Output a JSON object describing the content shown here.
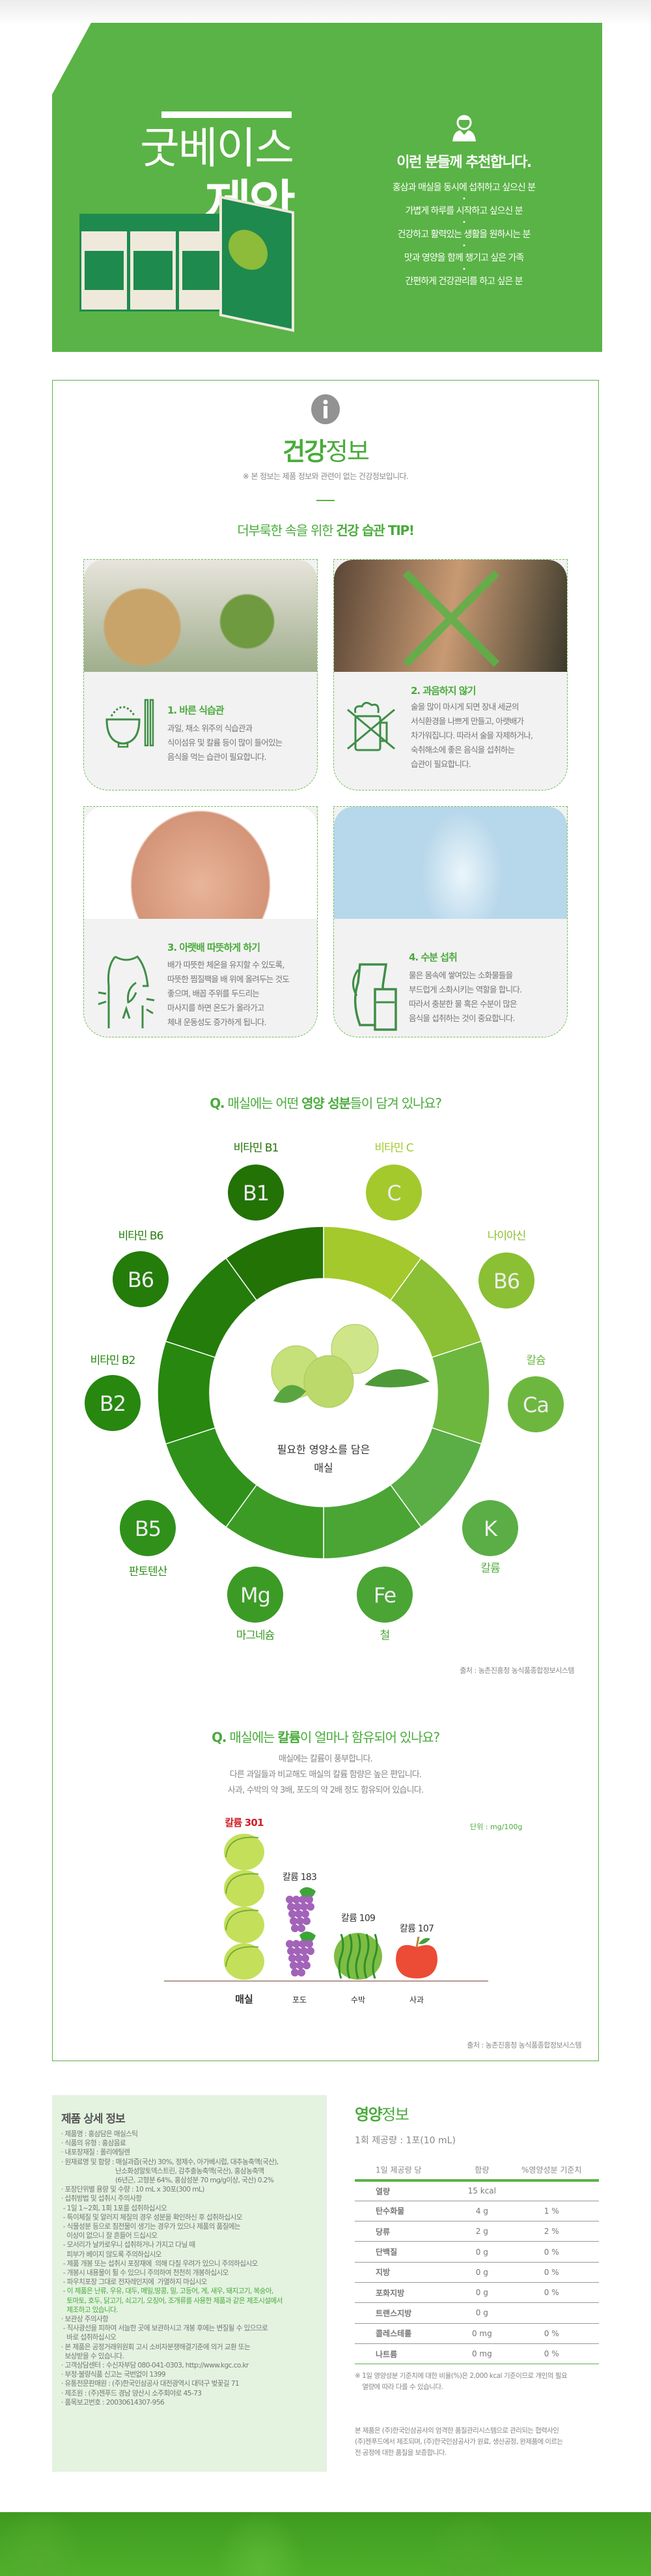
{
  "hero": {
    "title_light": "굿베이스",
    "title_bold": "제안",
    "recommend_heading": "이런 분들께 추천합니다.",
    "recommend_icon": "person-icon",
    "bullets": [
      "홍삼과 매실을 동시에 섭취하고 싶으신 분",
      "가볍게 하루를 시작하고 싶으신 분",
      "건강하고 활력있는 생활을 원하시는 분",
      "맛과 영양을 함께 챙기고 싶은 가족",
      "간편하게 건강관리를 하고 싶은 분"
    ],
    "bg_color": "#5ab346"
  },
  "health": {
    "icon": "info-icon",
    "title_bold": "건강",
    "title_light": "정보",
    "notice": "※ 본 정보는 제품 정보와 관련이 없는 건강정보입니다.",
    "tip_light": "더부룩한 속을 위한 ",
    "tip_bold": "건강 습관 TIP!",
    "cards": [
      {
        "title": "1. 바른 식습관",
        "icon": "rice-bowl-chopsticks-icon",
        "lines": [
          "과일, 채소 위주의 식습관과",
          "식이섬유 및 칼륨 등이 많이 들어있는",
          "음식을 먹는 습관이 필요합니다."
        ]
      },
      {
        "title": "2. 과음하지 않기",
        "icon": "no-beer-icon",
        "lines": [
          "술을 많이 마시게 되면 장내 세균의",
          "서식환경을 나쁘게 만들고, 아랫배가",
          "차가워집니다. 따라서 술을 자제하거나,",
          "숙취해소에 좋은 음식을 섭취하는",
          "습관이 필요합니다."
        ]
      },
      {
        "title": "3. 아랫배 따뜻하게 하기",
        "icon": "warm-belly-icon",
        "lines": [
          "배가 따뜻한 체온을 유지할 수 있도록,",
          "따뜻한 찜질팩을 배 위에 올려두는 것도",
          "좋으며, 배꼽 주위를 두드리는",
          "마사지를 하면 온도가  올라가고",
          "체내 운동성도 증가하게 됩니다."
        ]
      },
      {
        "title": "4. 수분 섭취",
        "icon": "water-pitcher-icon",
        "lines": [
          "물은 몸속에 쌓여있는 소화물들을",
          "부드럽게 소화시키는 역할을 합니다.",
          "따라서 충분한 물 혹은 수분이 많은",
          "음식을 섭취하는 것이 중요합니다."
        ]
      }
    ]
  },
  "nutrients": {
    "question_prefix": "Q.",
    "question_a": " 매실에는 어떤 ",
    "question_bold": "영양 성분",
    "question_b": "들이 담겨 있나요?",
    "center_text": [
      "필요한 영양소를 담은",
      "매실"
    ],
    "items": [
      {
        "symbol": "C",
        "label": "비타민 C",
        "color": "#a3c92c"
      },
      {
        "symbol": "B6",
        "label": "나이아신",
        "color": "#8bbf34"
      },
      {
        "symbol": "Ca",
        "label": "칼슘",
        "color": "#6db73f"
      },
      {
        "symbol": "K",
        "label": "칼륨",
        "color": "#5aae45"
      },
      {
        "symbol": "Fe",
        "label": "철",
        "color": "#4aa535"
      },
      {
        "symbol": "Mg",
        "label": "마그네슘",
        "color": "#3c9b25"
      },
      {
        "symbol": "B5",
        "label": "판토텐산",
        "color": "#2f911a"
      },
      {
        "symbol": "B2",
        "label": "비타민 B2",
        "color": "#27870f"
      },
      {
        "symbol": "B6",
        "label": "비타민 B6",
        "color": "#247c0a"
      },
      {
        "symbol": "B1",
        "label": "비타민 B1",
        "color": "#237206"
      }
    ],
    "source": "출처 : 농촌진흥청 농식품종합정보시스템"
  },
  "calcium": {
    "question_prefix": "Q.",
    "question_a": " 매실에는 ",
    "question_bold": "칼륨",
    "question_b": "이 얼마나 함유되어 있나요?",
    "desc": [
      "매실에는 칼륨이 풍부합니다.",
      "다른 과일들과 비교해도 매실의 칼륨 함량은 높은 편입니다.",
      "사과, 수박의 약 3배, 포도의 약 2배 정도 함유되어 있습니다."
    ],
    "unit": "단위 : mg/100g",
    "highlight_color": "#d0202a",
    "source": "출처 : 농촌진흥청 농식품종합정보시스템"
  },
  "chart_data": {
    "type": "bar",
    "categories": [
      "매실",
      "포도",
      "수박",
      "사과"
    ],
    "values": [
      301,
      183,
      109,
      107
    ],
    "data_labels": [
      "칼륨 301",
      "칼륨 183",
      "칼륨 109",
      "칼륨 107"
    ],
    "icons": [
      "plum",
      "grape",
      "watermelon",
      "apple"
    ],
    "icon_counts": [
      4,
      2,
      1,
      1
    ],
    "ylabel": "단위 : mg/100g"
  },
  "detail": {
    "title": "제품 상세 정보",
    "lines": [
      "· 제품명 : 홍삼담은 매실스틱",
      "· 식품의 유형 : 홍삼음료",
      "· 내포장재질 : 폴리에틸렌",
      "· 원재료명 및 함량 : 매실과즙(국산) 30%, 정제수, 아가베시럽, 대추농축액(국산),",
      "                              난소화성말토덱스트린, 감추출농축액(국산), 홍삼농축액",
      "                              (6년근, 고형분 64%, 홍삼성분 70 mg/g이상, 국산) 0.2%",
      "· 포장단위별 용량 및 수량 : 10 mL x 30포(300 mL)",
      "· 섭취방법 및 섭취시 주의사항",
      " - 1일 1~2회, 1회 1포를 섭취하십시오",
      " - 특이체질 및 알러지 체질의 경우 성분을 확인하신 후 섭취하십시오",
      " - 식물성분 등으로 침전물이 생기는 경우가 있으나 제품의 품질에는",
      "   이상이 없으니 잘 흔들어 드십시오",
      " - 모서리가 날카로우니 섭취하거나 가지고 다닐 때",
      "   피부가 베이지 않도록 주의하십시오",
      " - 제품 개봉 또는 섭취시 포장재에  의해 다칠 우려가 있으니 주의하십시오",
      " - 개봉시 내용물이 튈 수 있으니 주의하여 천천히 개봉하십시오",
      " - 파우치포장 그대로 전자레인지에  가열하지 마십시오"
    ],
    "allergy_lines": [
      " - 이 제품은 난류, 우유, 대두, 메밀,땅콩, 밀, 고등어, 게, 새우, 돼지고기, 복숭아,",
      "   토마토, 호두, 닭고기, 쇠고기, 오징어, 조개류를 사용한 제품과 같은 제조시설에서",
      "   제조하고 있습니다."
    ],
    "more_lines": [
      "· 보관상 주의사항",
      " - 직사광선을 피하여 서늘한 곳에 보관하시고 개봉 후에는 변질될 수 있으므로",
      "   바로 섭취하십시오",
      "· 본 제품은 공정거래위원회 고시 소비자분쟁해결기준에 의거 교환 또는",
      "  보상받을 수 있습니다.",
      "· 고객상담센터 : 수신자부담 080-041-0303, http://www.kgc.co.kr",
      "· 부정·불량식품 신고는 국번없이 1399",
      "· 유통전문판매원 : (주)한국인삼공사 대전광역시 대덕구 벚꽃길 71",
      "· 제조원 : (주)젠푸드 경남 양산시 소주회야로 45-73",
      "· 품목보고번호 : 20030614307-956"
    ]
  },
  "nutrition": {
    "title_bold": "영양",
    "title_light": "정보",
    "serving": "1회 제공량 : 1포(10 mL)",
    "headers": [
      "1일 제공량 당",
      "함량",
      "%영양성분 기준치"
    ],
    "rows": [
      [
        "열량",
        "15 kcal",
        ""
      ],
      [
        "탄수화물",
        "4 g",
        "1 %"
      ],
      [
        "당류",
        "2 g",
        "2 %"
      ],
      [
        "단백질",
        "0 g",
        "0 %"
      ],
      [
        "지방",
        "0 g",
        "0 %"
      ],
      [
        "포화지방",
        "0 g",
        "0 %"
      ],
      [
        "트랜스지방",
        "0 g",
        ""
      ],
      [
        "콜레스테롤",
        "0 mg",
        "0 %"
      ],
      [
        "나트륨",
        "0 mg",
        "0 %"
      ]
    ],
    "note": [
      "※ 1일 영양성분 기준치에 대한 비율(%)은 2,000 kcal 기준이므로 개인의 필요",
      "    열량에 따라 다를 수 있습니다."
    ],
    "quality": [
      "본 제품은 (주)한국인삼공사의 엄격한 품질관리시스템으로 관리되는 협력사인",
      "(주)젠푸드에서 제조되며, (주)한국인삼공사가 원료, 생산공정, 완제품에 이르는",
      "전 공정에 대한 품질을 보증합니다."
    ]
  }
}
